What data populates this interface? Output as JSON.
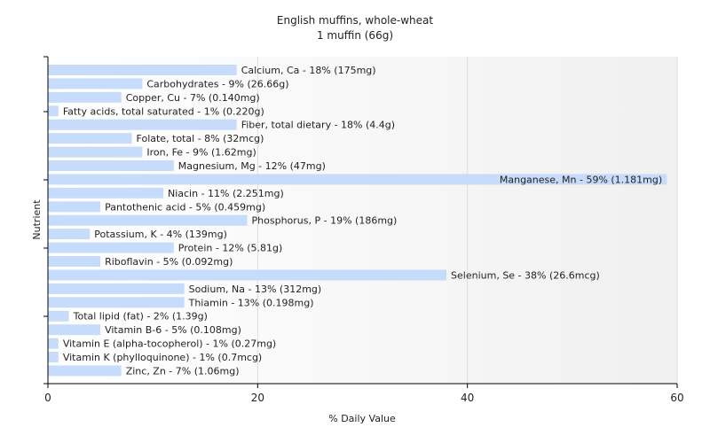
{
  "chart_data": {
    "type": "bar",
    "orientation": "horizontal",
    "title": "English muffins, whole-wheat",
    "subtitle": "1 muffin (66g)",
    "xlabel": "% Daily Value",
    "ylabel": "Nutrient",
    "xlim": [
      0,
      60
    ],
    "xticks": [
      0,
      20,
      40,
      60
    ],
    "bar_color": "#c6dcfa",
    "categories": [
      "Calcium, Ca",
      "Carbohydrates",
      "Copper, Cu",
      "Fatty acids, total saturated",
      "Fiber, total dietary",
      "Folate, total",
      "Iron, Fe",
      "Magnesium, Mg",
      "Manganese, Mn",
      "Niacin",
      "Pantothenic acid",
      "Phosphorus, P",
      "Potassium, K",
      "Protein",
      "Riboflavin",
      "Selenium, Se",
      "Sodium, Na",
      "Thiamin",
      "Total lipid (fat)",
      "Vitamin B-6",
      "Vitamin E (alpha-tocopherol)",
      "Vitamin K (phylloquinone)",
      "Zinc, Zn"
    ],
    "values": [
      18,
      9,
      7,
      1,
      18,
      8,
      9,
      12,
      59,
      11,
      5,
      19,
      4,
      12,
      5,
      38,
      13,
      13,
      2,
      5,
      1,
      1,
      7
    ],
    "labels": [
      "Calcium, Ca - 18% (175mg)",
      "Carbohydrates - 9% (26.66g)",
      "Copper, Cu - 7% (0.140mg)",
      "Fatty acids, total saturated - 1% (0.220g)",
      "Fiber, total dietary - 18% (4.4g)",
      "Folate, total - 8% (32mcg)",
      "Iron, Fe - 9% (1.62mg)",
      "Magnesium, Mg - 12% (47mg)",
      "Manganese, Mn - 59% (1.181mg)",
      "Niacin - 11% (2.251mg)",
      "Pantothenic acid - 5% (0.459mg)",
      "Phosphorus, P - 19% (186mg)",
      "Potassium, K - 4% (139mg)",
      "Protein - 12% (5.81g)",
      "Riboflavin - 5% (0.092mg)",
      "Selenium, Se - 38% (26.6mcg)",
      "Sodium, Na - 13% (312mg)",
      "Thiamin - 13% (0.198mg)",
      "Total lipid (fat) - 2% (1.39g)",
      "Vitamin B-6 - 5% (0.108mg)",
      "Vitamin E (alpha-tocopherol) - 1% (0.27mg)",
      "Vitamin K (phylloquinone) - 1% (0.7mcg)",
      "Zinc, Zn - 7% (1.06mg)"
    ]
  }
}
